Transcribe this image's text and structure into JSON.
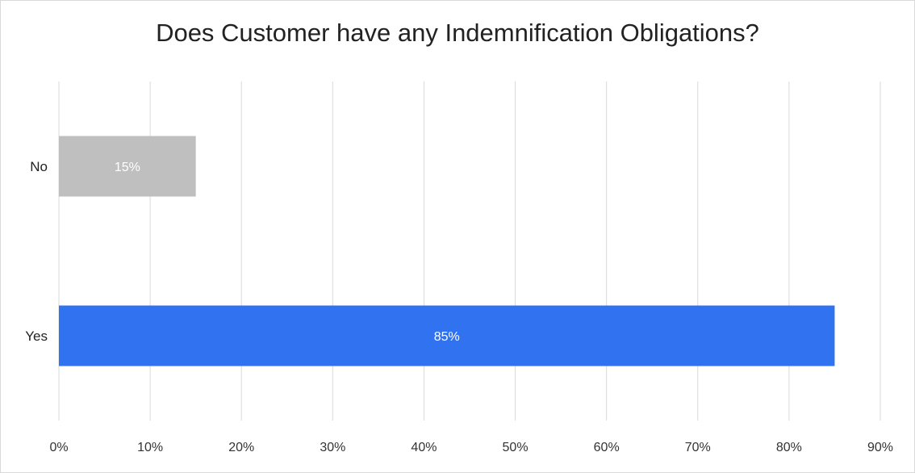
{
  "chart_data": {
    "type": "bar",
    "orientation": "horizontal",
    "title": "Does Customer have any Indemnification Obligations?",
    "categories": [
      "No",
      "Yes"
    ],
    "values": [
      15,
      85
    ],
    "data_labels": [
      "15%",
      "85%"
    ],
    "colors": [
      "#bfbfbf",
      "#3072f0"
    ],
    "xlim": [
      0,
      90
    ],
    "x_ticks": [
      0,
      10,
      20,
      30,
      40,
      50,
      60,
      70,
      80,
      90
    ],
    "x_tick_labels": [
      "0%",
      "10%",
      "20%",
      "30%",
      "40%",
      "50%",
      "60%",
      "70%",
      "80%",
      "90%"
    ],
    "grid": true,
    "legend": "none",
    "xlabel": "",
    "ylabel": ""
  }
}
